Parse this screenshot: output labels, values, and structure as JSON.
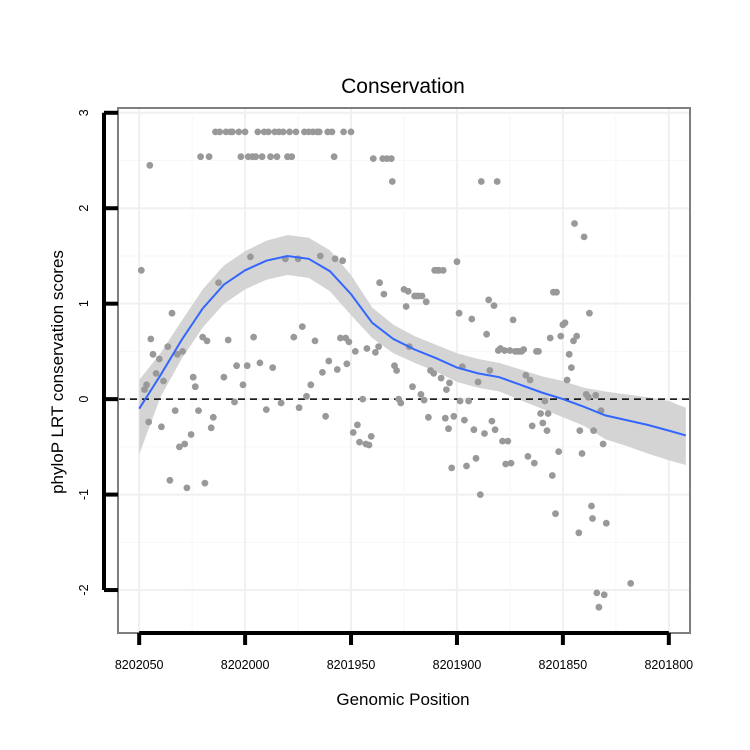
{
  "chart_data": {
    "type": "scatter",
    "title": "Conservation",
    "xlabel": "Genomic Position",
    "ylabel": "phyloP LRT conservation scores",
    "x_reversed": true,
    "xlim": [
      8202060,
      8201790
    ],
    "ylim": [
      -2.45,
      3.05
    ],
    "x_ticks": [
      8202050,
      8202000,
      8201950,
      8201900,
      8201850,
      8201800
    ],
    "x_tick_labels": [
      "8202050",
      "8202000",
      "8201950",
      "8201900",
      "8201850",
      "8201800"
    ],
    "y_ticks": [
      -2,
      -1,
      0,
      1,
      2,
      3
    ],
    "y_tick_labels": [
      "-2",
      "-1",
      "0",
      "1",
      "2",
      "3"
    ],
    "reference_line": {
      "y": 0,
      "style": "dashed"
    },
    "colors": {
      "points": "#999999",
      "smooth": "#3366ff",
      "band": "#d4d4d4",
      "grid": "#f0f0f0",
      "frame": "#7f7f7f",
      "refline": "#000000"
    },
    "series": [
      {
        "name": "scores",
        "points": [
          [
            8202049.0,
            1.35
          ],
          [
            8202047.5,
            0.1
          ],
          [
            8202046.5,
            0.15
          ],
          [
            8202045.5,
            -0.24
          ],
          [
            8202045.0,
            2.45
          ],
          [
            8202044.5,
            0.63
          ],
          [
            8202043.5,
            0.47
          ],
          [
            8202042.0,
            0.27
          ],
          [
            8202040.5,
            0.42
          ],
          [
            8202039.5,
            -0.29
          ],
          [
            8202038.5,
            0.19
          ],
          [
            8202036.5,
            0.55
          ],
          [
            8202035.5,
            -0.85
          ],
          [
            8202034.5,
            0.9
          ],
          [
            8202033.0,
            -0.12
          ],
          [
            8202032.0,
            0.47
          ],
          [
            8202031.0,
            -0.5
          ],
          [
            8202029.5,
            0.5
          ],
          [
            8202028.5,
            -0.47
          ],
          [
            8202027.5,
            -0.93
          ],
          [
            8202025.5,
            -0.37
          ],
          [
            8202024.5,
            0.23
          ],
          [
            8202023.5,
            0.13
          ],
          [
            8202022.0,
            -0.12
          ],
          [
            8202021.0,
            2.54
          ],
          [
            8202020.0,
            0.65
          ],
          [
            8202019.0,
            -0.88
          ],
          [
            8202018.0,
            0.61
          ],
          [
            8202017.0,
            2.54
          ],
          [
            8202016.0,
            -0.3
          ],
          [
            8202015.0,
            -0.19
          ],
          [
            8202014.0,
            2.8
          ],
          [
            8202012.5,
            1.22
          ],
          [
            8202012.0,
            2.8
          ],
          [
            8202010.0,
            0.23
          ],
          [
            8202009.0,
            2.8
          ],
          [
            8202008.0,
            0.62
          ],
          [
            8202007.0,
            2.8
          ],
          [
            8202006.0,
            2.8
          ],
          [
            8202005.0,
            -0.03
          ],
          [
            8202004.0,
            0.35
          ],
          [
            8202003.0,
            2.8
          ],
          [
            8202002.0,
            2.54
          ],
          [
            8202001.0,
            0.15
          ],
          [
            8202000.0,
            2.8
          ],
          [
            8201999.0,
            0.35
          ],
          [
            8201998.5,
            2.54
          ],
          [
            8201997.5,
            1.49
          ],
          [
            8201996.5,
            2.54
          ],
          [
            8201996.0,
            0.65
          ],
          [
            8201995.0,
            2.54
          ],
          [
            8201994.0,
            2.8
          ],
          [
            8201993.0,
            0.38
          ],
          [
            8201992.0,
            2.54
          ],
          [
            8201991.0,
            2.8
          ],
          [
            8201990.0,
            -0.11
          ],
          [
            8201989.0,
            2.8
          ],
          [
            8201988.0,
            2.54
          ],
          [
            8201987.0,
            0.33
          ],
          [
            8201986.0,
            2.8
          ],
          [
            8201985.0,
            2.54
          ],
          [
            8201984.0,
            2.8
          ],
          [
            8201983.0,
            -0.04
          ],
          [
            8201982.0,
            2.8
          ],
          [
            8201981.0,
            1.47
          ],
          [
            8201980.0,
            2.54
          ],
          [
            8201979.0,
            2.8
          ],
          [
            8201978.0,
            2.54
          ],
          [
            8201977.0,
            0.65
          ],
          [
            8201976.0,
            2.8
          ],
          [
            8201975.0,
            1.47
          ],
          [
            8201974.5,
            -0.09
          ],
          [
            8201973.0,
            0.76
          ],
          [
            8201972.0,
            2.8
          ],
          [
            8201971.0,
            0.03
          ],
          [
            8201970.0,
            2.8
          ],
          [
            8201969.0,
            0.15
          ],
          [
            8201968.0,
            2.8
          ],
          [
            8201967.0,
            0.61
          ],
          [
            8201966.0,
            2.8
          ],
          [
            8201965.0,
            2.8
          ],
          [
            8201964.5,
            1.5
          ],
          [
            8201963.5,
            0.28
          ],
          [
            8201962.0,
            -0.18
          ],
          [
            8201961.0,
            2.8
          ],
          [
            8201960.5,
            0.4
          ],
          [
            8201959.0,
            2.8
          ],
          [
            8201958.0,
            2.54
          ],
          [
            8201957.5,
            1.47
          ],
          [
            8201956.5,
            0.31
          ],
          [
            8201955.0,
            0.64
          ],
          [
            8201954.0,
            1.45
          ],
          [
            8201953.5,
            2.8
          ],
          [
            8201952.5,
            0.64
          ],
          [
            8201952.0,
            0.37
          ],
          [
            8201951.0,
            0.6
          ],
          [
            8201950.0,
            2.8
          ],
          [
            8201949.0,
            -0.35
          ],
          [
            8201948.0,
            0.5
          ],
          [
            8201947.0,
            -0.27
          ],
          [
            8201946.0,
            -0.45
          ],
          [
            8201944.5,
            0.0
          ],
          [
            8201943.0,
            -0.47
          ],
          [
            8201942.5,
            0.53
          ],
          [
            8201941.5,
            -0.48
          ],
          [
            8201940.5,
            -0.39
          ],
          [
            8201939.5,
            2.52
          ],
          [
            8201938.5,
            0.49
          ],
          [
            8201937.0,
            0.55
          ],
          [
            8201936.5,
            1.22
          ],
          [
            8201935.0,
            2.52
          ],
          [
            8201934.5,
            1.1
          ],
          [
            8201933.0,
            2.52
          ],
          [
            8201931.0,
            2.52
          ],
          [
            8201930.5,
            2.28
          ],
          [
            8201929.5,
            0.35
          ],
          [
            8201928.5,
            0.3
          ],
          [
            8201927.5,
            0.0
          ],
          [
            8201926.5,
            -0.04
          ],
          [
            8201925.0,
            1.15
          ],
          [
            8201924.0,
            0.97
          ],
          [
            8201923.0,
            1.13
          ],
          [
            8201922.5,
            0.55
          ],
          [
            8201921.0,
            0.13
          ],
          [
            8201920.0,
            1.08
          ],
          [
            8201919.0,
            1.08
          ],
          [
            8201918.0,
            1.08
          ],
          [
            8201917.0,
            0.05
          ],
          [
            8201916.5,
            1.08
          ],
          [
            8201915.5,
            -0.01
          ],
          [
            8201914.5,
            1.02
          ],
          [
            8201913.5,
            -0.19
          ],
          [
            8201912.5,
            0.3
          ],
          [
            8201911.0,
            0.27
          ],
          [
            8201910.5,
            1.35
          ],
          [
            8201909.5,
            1.35
          ],
          [
            8201908.5,
            1.35
          ],
          [
            8201907.5,
            0.22
          ],
          [
            8201906.5,
            1.35
          ],
          [
            8201905.5,
            -0.2
          ],
          [
            8201905.0,
            0.1
          ],
          [
            8201904.0,
            -0.31
          ],
          [
            8201903.5,
            0.17
          ],
          [
            8201902.5,
            -0.72
          ],
          [
            8201901.5,
            -0.18
          ],
          [
            8201900.0,
            1.44
          ],
          [
            8201899.0,
            0.9
          ],
          [
            8201898.5,
            -0.02
          ],
          [
            8201897.5,
            0.34
          ],
          [
            8201896.5,
            -0.22
          ],
          [
            8201895.5,
            -0.7
          ],
          [
            8201894.5,
            -0.02
          ],
          [
            8201893.0,
            0.84
          ],
          [
            8201892.0,
            -0.32
          ],
          [
            8201891.0,
            -0.62
          ],
          [
            8201890.0,
            0.18
          ],
          [
            8201889.0,
            -1.0
          ],
          [
            8201888.5,
            2.28
          ],
          [
            8201887.0,
            -0.36
          ],
          [
            8201886.0,
            0.68
          ],
          [
            8201885.0,
            1.04
          ],
          [
            8201884.5,
            0.3
          ],
          [
            8201883.5,
            -0.23
          ],
          [
            8201882.5,
            0.98
          ],
          [
            8201882.0,
            -0.32
          ],
          [
            8201881.0,
            2.28
          ],
          [
            8201880.5,
            0.51
          ],
          [
            8201879.5,
            0.53
          ],
          [
            8201878.5,
            -0.44
          ],
          [
            8201877.5,
            0.51
          ],
          [
            8201877.0,
            -0.68
          ],
          [
            8201876.0,
            -0.44
          ],
          [
            8201875.0,
            0.51
          ],
          [
            8201874.5,
            -0.67
          ],
          [
            8201873.5,
            0.83
          ],
          [
            8201872.5,
            0.5
          ],
          [
            8201871.5,
            0.5
          ],
          [
            8201870.5,
            0.5
          ],
          [
            8201869.5,
            0.5
          ],
          [
            8201868.5,
            0.52
          ],
          [
            8201867.5,
            0.25
          ],
          [
            8201866.5,
            -0.6
          ],
          [
            8201865.5,
            0.2
          ],
          [
            8201864.5,
            -0.28
          ],
          [
            8201863.5,
            -0.67
          ],
          [
            8201862.5,
            0.5
          ],
          [
            8201861.5,
            0.5
          ],
          [
            8201860.5,
            -0.15
          ],
          [
            8201859.5,
            -0.25
          ],
          [
            8201858.5,
            -0.02
          ],
          [
            8201857.5,
            -0.33
          ],
          [
            8201857.0,
            -0.15
          ],
          [
            8201856.0,
            0.64
          ],
          [
            8201855.0,
            -0.8
          ],
          [
            8201854.5,
            1.12
          ],
          [
            8201853.5,
            -1.2
          ],
          [
            8201853.0,
            1.12
          ],
          [
            8201852.0,
            -0.55
          ],
          [
            8201851.0,
            0.66
          ],
          [
            8201850.0,
            0.78
          ],
          [
            8201849.0,
            0.8
          ],
          [
            8201848.0,
            0.2
          ],
          [
            8201847.0,
            0.47
          ],
          [
            8201846.0,
            0.33
          ],
          [
            8201845.0,
            0.61
          ],
          [
            8201844.5,
            1.84
          ],
          [
            8201843.5,
            0.66
          ],
          [
            8201842.5,
            -1.4
          ],
          [
            8201842.0,
            -0.33
          ],
          [
            8201841.0,
            -0.57
          ],
          [
            8201840.0,
            1.7
          ],
          [
            8201839.0,
            0.05
          ],
          [
            8201838.0,
            0.02
          ],
          [
            8201837.5,
            0.9
          ],
          [
            8201836.5,
            -1.12
          ],
          [
            8201836.0,
            -1.25
          ],
          [
            8201835.5,
            -0.33
          ],
          [
            8201834.5,
            0.04
          ],
          [
            8201834.0,
            -2.03
          ],
          [
            8201833.0,
            -2.18
          ],
          [
            8201832.0,
            -0.12
          ],
          [
            8201831.0,
            -0.47
          ],
          [
            8201830.5,
            -2.05
          ],
          [
            8201829.5,
            -1.3
          ],
          [
            8201818.0,
            -1.93
          ]
        ]
      }
    ],
    "smooth": {
      "x": [
        8202050,
        8202040,
        8202030,
        8202020,
        8202010,
        8202000,
        8201990,
        8201980,
        8201970,
        8201960,
        8201950,
        8201940,
        8201930,
        8201920,
        8201910,
        8201900,
        8201890,
        8201880,
        8201870,
        8201860,
        8201850,
        8201840,
        8201830,
        8201820,
        8201810,
        8201800,
        8201792
      ],
      "y": [
        -0.1,
        0.25,
        0.62,
        0.95,
        1.2,
        1.35,
        1.45,
        1.5,
        1.47,
        1.34,
        1.1,
        0.8,
        0.63,
        0.52,
        0.43,
        0.33,
        0.27,
        0.23,
        0.15,
        0.07,
        0.0,
        -0.08,
        -0.17,
        -0.22,
        -0.27,
        -0.33,
        -0.38
      ],
      "upper": [
        0.2,
        0.48,
        0.82,
        1.15,
        1.4,
        1.55,
        1.66,
        1.72,
        1.69,
        1.56,
        1.3,
        0.96,
        0.78,
        0.66,
        0.57,
        0.48,
        0.42,
        0.38,
        0.31,
        0.24,
        0.19,
        0.12,
        0.08,
        0.05,
        0.02,
        -0.02,
        -0.09
      ],
      "lower": [
        -0.58,
        0.02,
        0.42,
        0.75,
        1.0,
        1.15,
        1.25,
        1.3,
        1.27,
        1.13,
        0.88,
        0.64,
        0.48,
        0.38,
        0.29,
        0.18,
        0.12,
        0.08,
        -0.01,
        -0.1,
        -0.19,
        -0.28,
        -0.42,
        -0.49,
        -0.57,
        -0.64,
        -0.69
      ]
    }
  }
}
